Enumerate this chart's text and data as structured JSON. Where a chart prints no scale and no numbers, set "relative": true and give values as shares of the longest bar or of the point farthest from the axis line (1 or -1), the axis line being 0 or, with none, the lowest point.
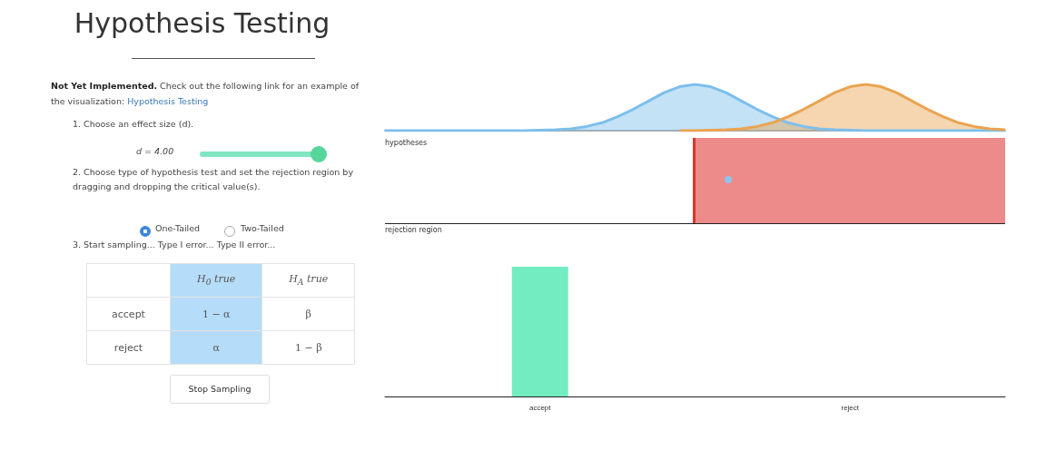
{
  "chart_data": [
    {
      "type": "other",
      "title": "Hypothesis Testing",
      "annotations": [
        "Not Yet Implemented.",
        "Check out the following link for an example of the visualization:",
        "Hypothesis Testing",
        "1. Choose an effect size (d).",
        "d = 4.00",
        "2. Choose type of hypothesis test and set the rejection region by dragging and dropping the critical value(s).",
        "One-Tailed",
        "Two-Tailed",
        "3. Start sampling... Type I error... Type II error...",
        "H$_{0}$ true",
        "H$_{A}$ true",
        "accept",
        "1 − α",
        "β",
        "reject",
        "α",
        "1 − β",
        "Stop Sampling"
      ]
    },
    {
      "type": "area",
      "relative": true,
      "annotations": [
        "hypotheses"
      ],
      "categories": [
        null,
        null,
        null,
        null,
        null,
        null,
        null,
        null,
        null,
        null,
        null,
        null,
        null,
        null,
        null,
        null,
        null,
        null,
        null,
        null,
        null,
        null,
        null,
        null,
        null,
        null,
        null,
        null,
        null,
        null,
        null,
        null,
        null,
        null,
        null,
        null,
        null,
        null,
        null,
        null,
        null
      ],
      "series": [
        {
          "color": "#7dbfeb",
          "values": [
            0,
            0,
            0,
            0,
            0,
            0,
            0,
            0,
            0,
            0,
            0.01,
            0.02,
            0.04,
            0.09,
            0.17,
            0.3,
            0.46,
            0.64,
            0.82,
            0.95,
            1,
            0.95,
            0.82,
            0.64,
            0.46,
            0.3,
            0.17,
            0.09,
            0.04,
            0.02,
            0.01,
            0,
            0,
            0,
            0,
            0,
            0,
            0,
            0,
            0,
            0
          ]
        },
        {
          "color": "#e9a450",
          "values": [
            null,
            null,
            null,
            null,
            null,
            null,
            null,
            null,
            null,
            null,
            null,
            null,
            null,
            null,
            null,
            null,
            null,
            null,
            null,
            0,
            0,
            0.01,
            0.02,
            0.04,
            0.09,
            0.17,
            0.3,
            0.46,
            0.64,
            0.82,
            0.95,
            1,
            0.95,
            0.82,
            0.64,
            0.46,
            0.3,
            0.17,
            0.09,
            0.04,
            0.02
          ]
        }
      ]
    },
    {
      "type": "other",
      "annotations": [
        "rejection region"
      ]
    },
    {
      "type": "bar",
      "relative": true,
      "categories": [
        "accept",
        "reject"
      ],
      "values": [
        1,
        0
      ],
      "color": "#72ecc0"
    }
  ]
}
